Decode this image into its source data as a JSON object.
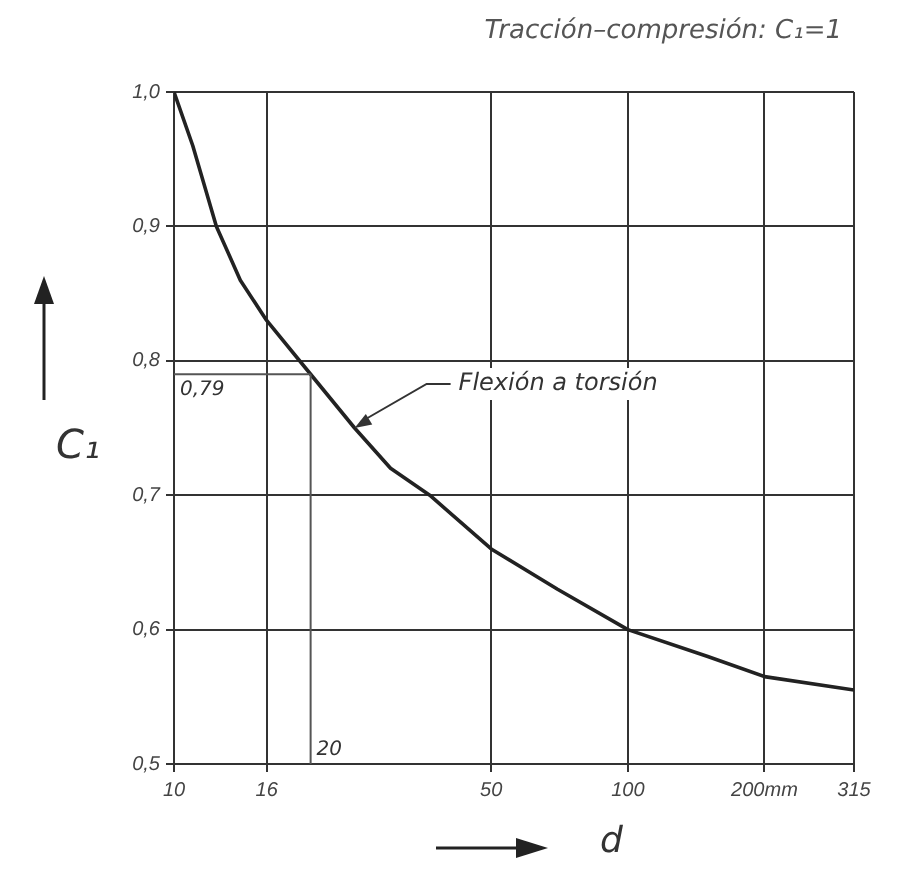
{
  "chart_data": {
    "type": "line",
    "title": "Tracción–compresión: C₁=1",
    "xlabel": "d",
    "ylabel": "C₁",
    "log": "x",
    "grid": true,
    "legend": false,
    "marker": "none",
    "line_style": "solid",
    "xlim": [
      10,
      315
    ],
    "xticks": [
      10,
      16,
      50,
      100,
      {
        "value": 200,
        "label": "200mm"
      },
      315
    ],
    "ylim": [
      0.5,
      1.0
    ],
    "yticks": [
      {
        "value": 0.5,
        "label": "0,5"
      },
      {
        "value": 0.6,
        "label": "0,6"
      },
      {
        "value": 0.7,
        "label": "0,7"
      },
      {
        "value": 0.8,
        "label": "0,8"
      },
      {
        "value": 0.9,
        "label": "0,9"
      },
      {
        "value": 1.0,
        "label": "1,0"
      }
    ],
    "x": [
      10,
      11,
      12.4,
      14,
      16,
      20,
      25,
      30,
      36.6,
      50,
      70,
      100,
      150,
      200,
      315
    ],
    "series": [
      {
        "color": "#222222",
        "values": [
          1.0,
          0.96,
          0.9,
          0.86,
          0.83,
          0.79,
          0.75,
          0.72,
          0.7,
          0.66,
          0.63,
          0.6,
          0.58,
          0.565,
          0.555
        ]
      }
    ],
    "ref_lines": [
      {
        "axis": "y",
        "value": 0.79,
        "label": "0,79"
      },
      {
        "axis": "x",
        "value": 20,
        "label": "20"
      }
    ],
    "annotations": [
      {
        "text": "Flexión a torsión",
        "x": 25,
        "y": 0.75
      }
    ]
  }
}
